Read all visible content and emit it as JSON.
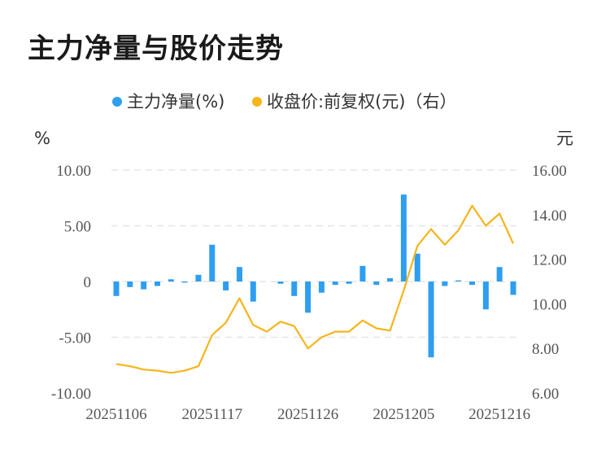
{
  "title": "主力净量与股价走势",
  "colors": {
    "bar": "#2e9ef0",
    "line": "#f5b51b",
    "grid": "#e6e6e6"
  },
  "chart_data": {
    "type": "bar+line",
    "legend": {
      "placement": "top-center"
    },
    "grid": true,
    "left_axis": {
      "unit": "%",
      "range": [
        -10,
        10
      ],
      "ticks": [
        "10.00",
        "5.00",
        "0",
        "-5.00",
        "-10.00"
      ]
    },
    "right_axis": {
      "unit": "元",
      "range": [
        6,
        16
      ],
      "ticks": [
        "16.00",
        "14.00",
        "12.00",
        "10.00",
        "8.00",
        "6.00"
      ]
    },
    "x_tick_labels": [
      "20251106",
      "20251117",
      "20251126",
      "20251205",
      "20251216"
    ],
    "x_tick_indices": [
      0,
      7,
      14,
      21,
      28
    ],
    "series": [
      {
        "name": "主力净量(%)",
        "type": "bar",
        "axis": "left",
        "values": [
          -1.3,
          -0.5,
          -0.7,
          -0.4,
          0.2,
          -0.1,
          0.6,
          3.3,
          -0.8,
          1.3,
          -1.8,
          0,
          -0.2,
          -1.3,
          -2.8,
          -1.0,
          -0.3,
          -0.2,
          1.4,
          -0.3,
          0.3,
          7.8,
          2.5,
          -6.8,
          -0.4,
          0.1,
          -0.3,
          -2.5,
          1.3,
          -1.2
        ]
      },
      {
        "name": "收盘价:前复权(元)（右）",
        "type": "line",
        "axis": "right",
        "values": [
          7.3,
          7.2,
          7.05,
          7.0,
          6.9,
          7.0,
          7.2,
          8.6,
          9.15,
          10.25,
          9.05,
          8.75,
          9.2,
          9.0,
          8.0,
          8.5,
          8.75,
          8.75,
          9.25,
          8.9,
          8.8,
          10.6,
          12.6,
          13.35,
          12.65,
          13.3,
          14.4,
          13.5,
          14.05,
          12.7
        ]
      }
    ]
  }
}
